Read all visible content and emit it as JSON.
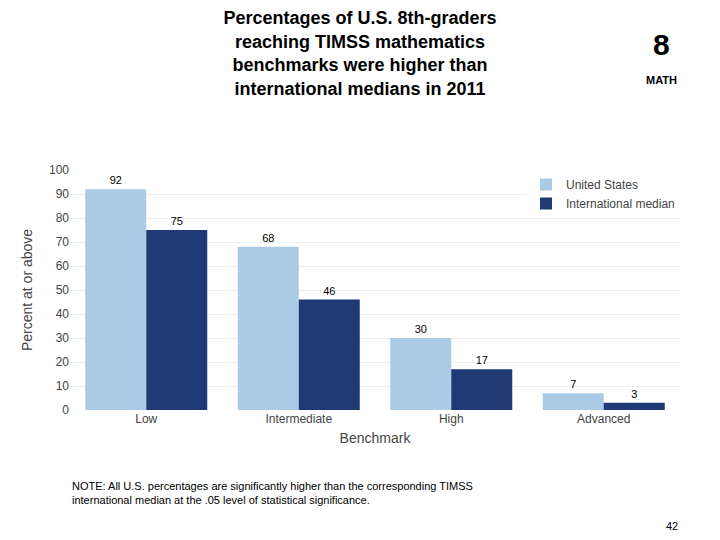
{
  "chart_data": {
    "type": "bar",
    "title": "Percentages of U.S. 8th-graders\nreaching TIMSS mathematics\nbenchmarks were higher than\ninternational medians in 2011",
    "x_label": "Benchmark",
    "y_label": "Percent at or above",
    "categories": [
      "Low",
      "Intermediate",
      "High",
      "Advanced"
    ],
    "series": [
      {
        "name": "United States",
        "color": "#aacae6",
        "values": [
          92,
          68,
          30,
          7
        ]
      },
      {
        "name": "International median",
        "color": "#1f3974",
        "values": [
          75,
          46,
          17,
          3
        ]
      }
    ],
    "ylim": [
      0,
      100
    ],
    "yticks": [
      0,
      10,
      20,
      30,
      40,
      50,
      60,
      70,
      80,
      90,
      100
    ],
    "grid": true,
    "legend": "upper right",
    "data_labels": true,
    "annotations": [
      "NOTE: All U.S. percentages are significantly higher than the corresponding TIMSS\ninternational median at the .05 level of statistical significance.",
      "42",
      "8",
      "MATH"
    ]
  }
}
